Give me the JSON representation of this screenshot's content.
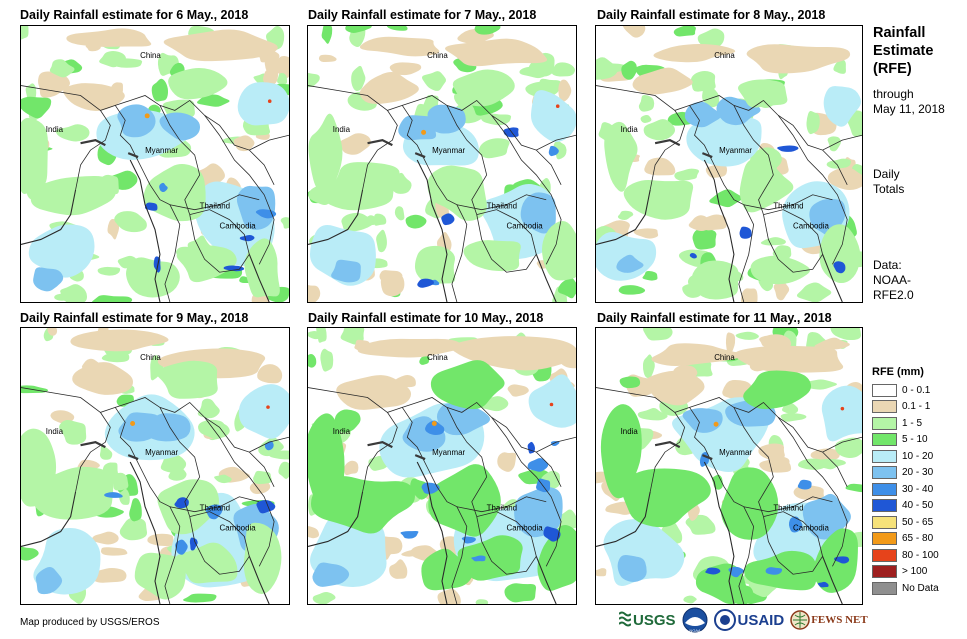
{
  "panels": [
    {
      "title": "Daily Rainfall estimate for 6 May., 2018",
      "intensity": 1.0
    },
    {
      "title": "Daily Rainfall estimate for 7 May., 2018",
      "intensity": 0.9
    },
    {
      "title": "Daily Rainfall estimate for 8 May., 2018",
      "intensity": 0.7
    },
    {
      "title": "Daily Rainfall estimate for 9 May., 2018",
      "intensity": 1.2
    },
    {
      "title": "Daily Rainfall estimate for 10 May., 2018",
      "intensity": 1.6
    },
    {
      "title": "Daily Rainfall estimate for 11 May., 2018",
      "intensity": 1.4
    }
  ],
  "map_labels": {
    "china": "China",
    "india": "India",
    "myanmar": "Myanmar",
    "thailand": "Thailand",
    "cambodia": "Cambodia"
  },
  "sidebar": {
    "title_line1": "Rainfall",
    "title_line2": "Estimate",
    "title_line3": "(RFE)",
    "through": "through",
    "date": "May 11, 2018",
    "totals_line1": "Daily",
    "totals_line2": "Totals",
    "data_line1": "Data:",
    "data_line2": "NOAA-",
    "data_line3": "RFE2.0"
  },
  "legend": {
    "title": "RFE (mm)",
    "items": [
      {
        "label": "0 - 0.1",
        "color": "#ffffff"
      },
      {
        "label": "0.1 - 1",
        "color": "#ead7b4"
      },
      {
        "label": "1 - 5",
        "color": "#b4f5a6"
      },
      {
        "label": "5 - 10",
        "color": "#72e66a"
      },
      {
        "label": "10 - 20",
        "color": "#b9ecf7"
      },
      {
        "label": "20 - 30",
        "color": "#7dc2f0"
      },
      {
        "label": "30 - 40",
        "color": "#3e8fe8"
      },
      {
        "label": "40 - 50",
        "color": "#1f57d6"
      },
      {
        "label": "50 - 65",
        "color": "#f6e27a"
      },
      {
        "label": "65 - 80",
        "color": "#f29a19"
      },
      {
        "label": "80 - 100",
        "color": "#e6431b"
      },
      {
        "label": "> 100",
        "color": "#9e1f1f"
      },
      {
        "label": "No Data",
        "color": "#8f8f8f"
      }
    ]
  },
  "credit": "Map produced by USGS/EROS",
  "logos": {
    "usgs": "USGS",
    "noaa": "NOAA",
    "usaid": "USAID",
    "fewsnet": "FEWS NET"
  }
}
